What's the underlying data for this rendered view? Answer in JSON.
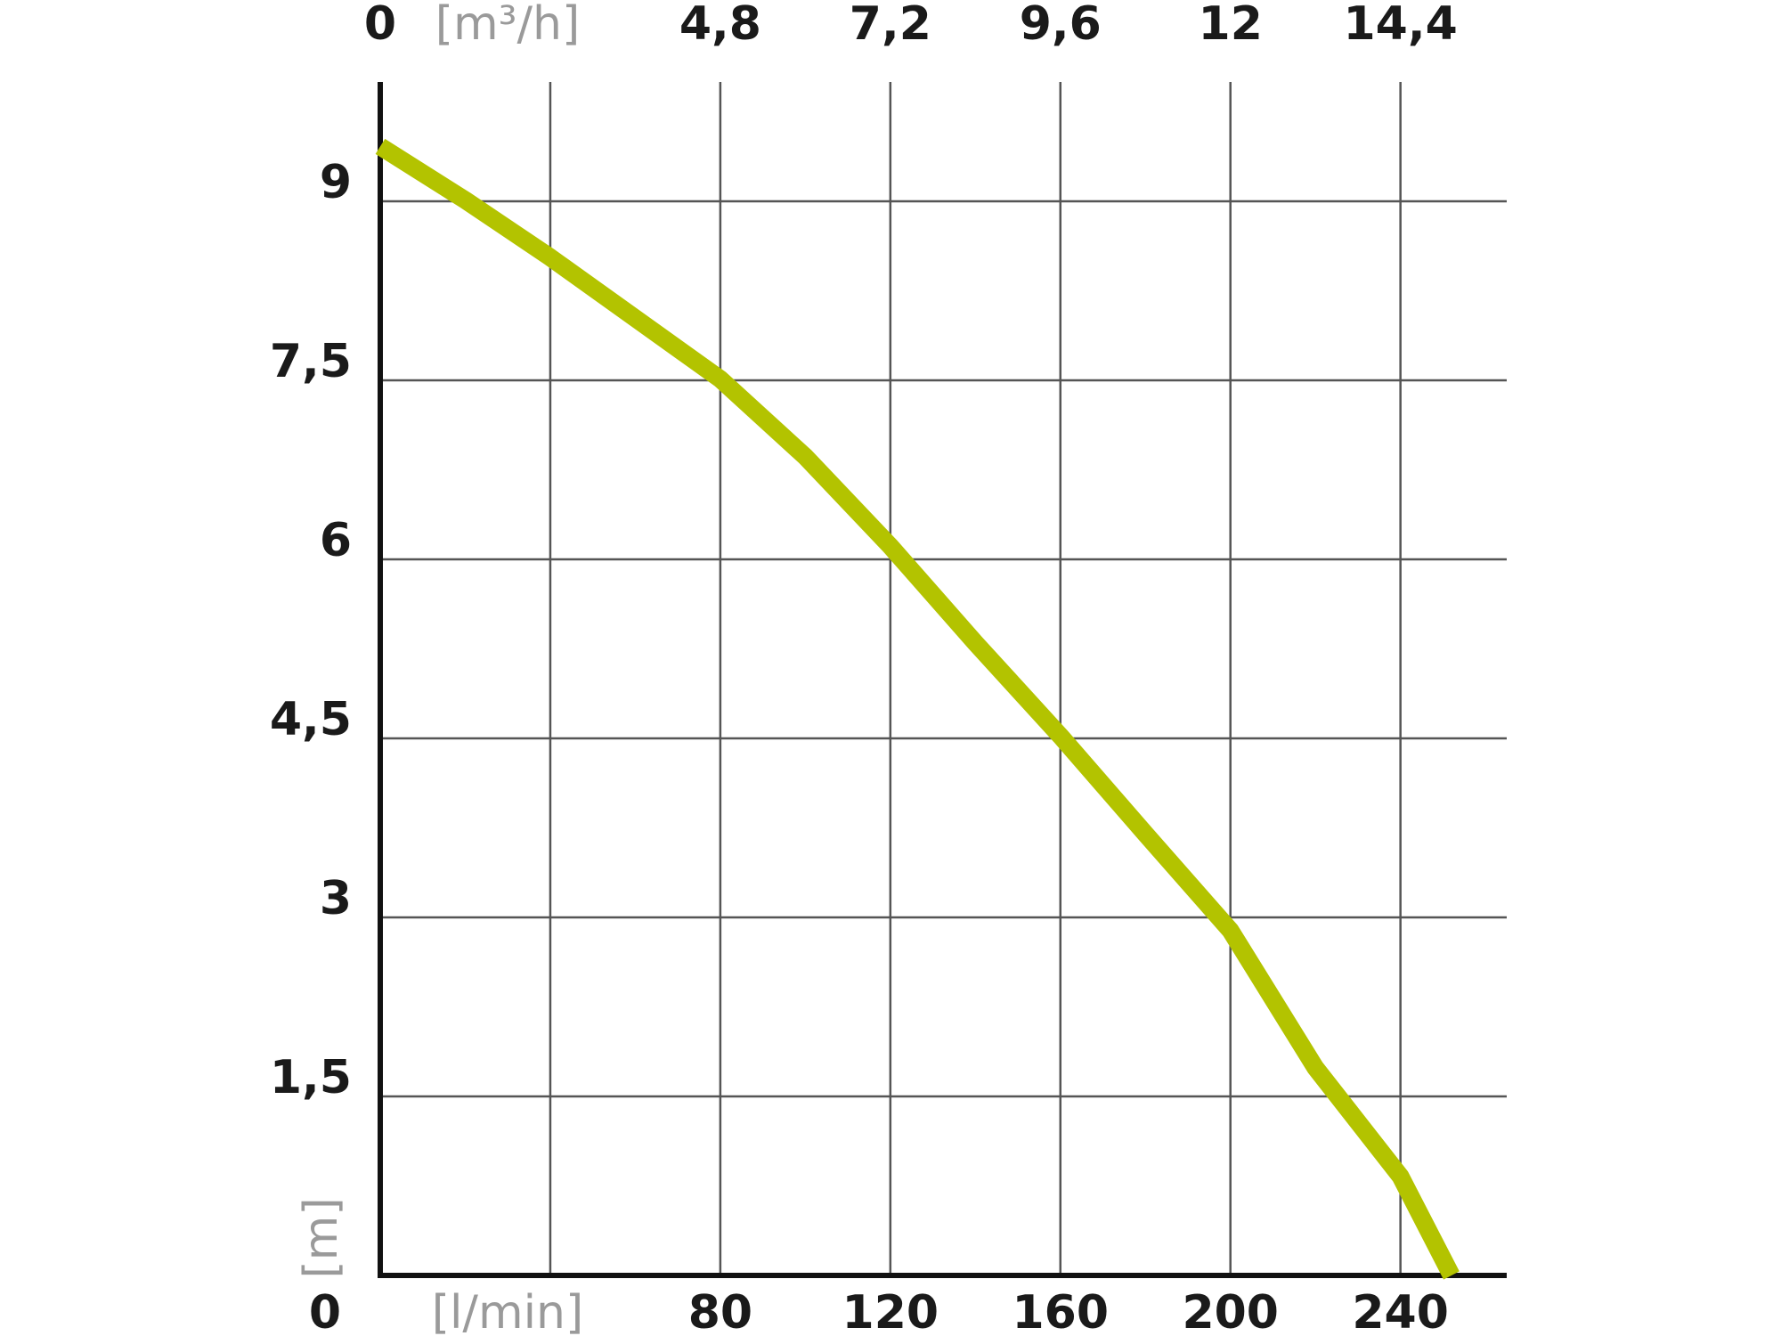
{
  "chart_data": {
    "type": "line",
    "x_label": "[l/min]",
    "x2_label": "[m³/h]",
    "y_label": "[m]",
    "xlim": [
      0,
      265
    ],
    "xticks": [
      0,
      {
        "value": 40,
        "label": null
      },
      80,
      120,
      160,
      200,
      240
    ],
    "x2lim": [
      0,
      15.9
    ],
    "x2ticks": [
      0,
      {
        "value": 2.4,
        "label": null
      },
      {
        "value": 4.8,
        "label": "4,8"
      },
      {
        "value": 7.2,
        "label": "7,2"
      },
      {
        "value": 9.6,
        "label": "9,6"
      },
      12,
      {
        "value": 14.4,
        "label": "14,4"
      }
    ],
    "ylim": [
      0,
      10
    ],
    "yticks": [
      {
        "value": 1.5,
        "label": "1,5"
      },
      3,
      {
        "value": 4.5,
        "label": "4,5"
      },
      6,
      {
        "value": 7.5,
        "label": "7,5"
      },
      9
    ],
    "grid": true,
    "series": [
      {
        "color": "#b3c300",
        "x": [
          0,
          20,
          40,
          80,
          100,
          120,
          140,
          160,
          180,
          200,
          220,
          240,
          252
        ],
        "values": [
          9.46,
          9.01,
          8.53,
          7.51,
          6.86,
          6.11,
          5.3,
          4.52,
          3.7,
          2.89,
          1.74,
          0.83,
          0
        ]
      }
    ]
  }
}
